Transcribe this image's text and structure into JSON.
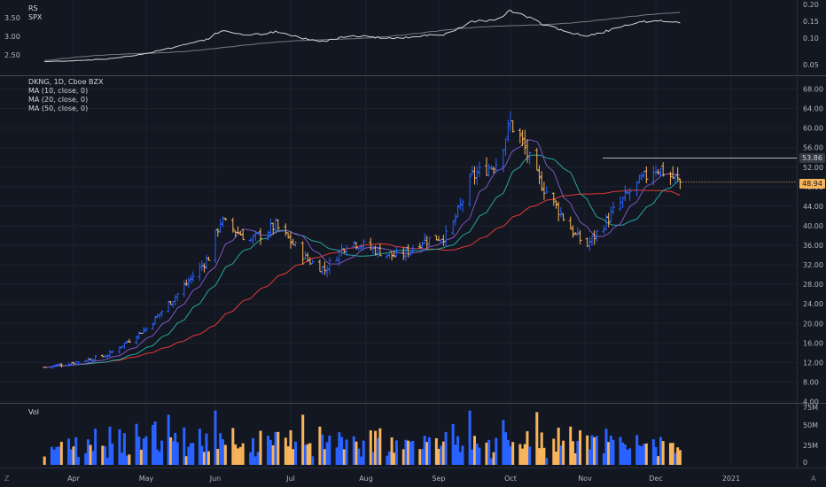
{
  "colors": {
    "background": "#131722",
    "up": "#2962ff",
    "down": "#f7b45a",
    "ma10": "#7e57c2",
    "ma20": "#26a69a",
    "ma50": "#e53935",
    "rs_line": "#d1d4dc",
    "spx_line": "#787b86"
  },
  "rs_pane": {
    "labels": [
      "RS",
      "SPX"
    ],
    "left_ticks": [
      "3.50",
      "3.00",
      "2.50"
    ],
    "right_ticks": [
      "0.20",
      "0.15",
      "0.10",
      "0.05"
    ]
  },
  "price_pane": {
    "legend": [
      "DKNG, 1D, Cboe BZX",
      "MA (10, close, 0)",
      "MA (20, close, 0)",
      "MA (50, close, 0)"
    ],
    "right_ticks": [
      "68.00",
      "64.00",
      "60.00",
      "56.00",
      "52.00",
      "48.00",
      "44.00",
      "40.00",
      "36.00",
      "32.00",
      "28.00",
      "24.00",
      "20.00",
      "16.00",
      "12.00",
      "8.00",
      "4.00"
    ],
    "resistance_label": "53.86",
    "last_price_label": "48.94"
  },
  "volume_pane": {
    "label": "Vol",
    "right_ticks": [
      "75M",
      "50M",
      "25M",
      "0"
    ]
  },
  "time_axis": [
    "Apr",
    "May",
    "Jun",
    "Jul",
    "Aug",
    "Sep",
    "Oct",
    "Nov",
    "Dec",
    "2021"
  ],
  "corner_glyphs": {
    "left": "Z",
    "right": "A"
  },
  "chart_data": {
    "type": "ohlc",
    "title": "DKNG, 1D, Cboe BZX",
    "ylim": [
      4,
      68
    ],
    "months": [
      "Apr",
      "May",
      "Jun",
      "Jul",
      "Aug",
      "Sep",
      "Oct",
      "Nov",
      "Dec",
      "2021"
    ],
    "close_anchors": [
      {
        "date": "Mar 20",
        "close": 11.0
      },
      {
        "date": "Apr 1",
        "close": 12.0
      },
      {
        "date": "Apr 15",
        "close": 13.5
      },
      {
        "date": "May 1",
        "close": 19.0
      },
      {
        "date": "May 15",
        "close": 26.0
      },
      {
        "date": "May 29",
        "close": 33.5
      },
      {
        "date": "Jun 3",
        "close": 41.0
      },
      {
        "date": "Jun 15",
        "close": 37.0
      },
      {
        "date": "Jun 25",
        "close": 40.0
      },
      {
        "date": "Jul 8",
        "close": 33.0
      },
      {
        "date": "Jul 15",
        "close": 31.0
      },
      {
        "date": "Jul 25",
        "close": 37.0
      },
      {
        "date": "Aug 5",
        "close": 35.0
      },
      {
        "date": "Aug 15",
        "close": 33.5
      },
      {
        "date": "Aug 25",
        "close": 37.0
      },
      {
        "date": "Sep 5",
        "close": 38.0
      },
      {
        "date": "Sep 15",
        "close": 50.0
      },
      {
        "date": "Sep 25",
        "close": 53.0
      },
      {
        "date": "Oct 1",
        "close": 61.0
      },
      {
        "date": "Oct 5",
        "close": 58.0
      },
      {
        "date": "Oct 12",
        "close": 50.0
      },
      {
        "date": "Oct 20",
        "close": 44.0
      },
      {
        "date": "Oct 28",
        "close": 38.0
      },
      {
        "date": "Nov 2",
        "close": 36.0
      },
      {
        "date": "Nov 10",
        "close": 41.0
      },
      {
        "date": "Nov 20",
        "close": 47.0
      },
      {
        "date": "Dec 1",
        "close": 52.0
      },
      {
        "date": "Dec 11",
        "close": 48.94
      }
    ],
    "resistance": 53.86,
    "last": 48.94,
    "rs_ylim_left": [
      2.3,
      3.7
    ],
    "rs_ylim_right": [
      0.03,
      0.22
    ],
    "volume_ylim": [
      0,
      75000000
    ]
  }
}
